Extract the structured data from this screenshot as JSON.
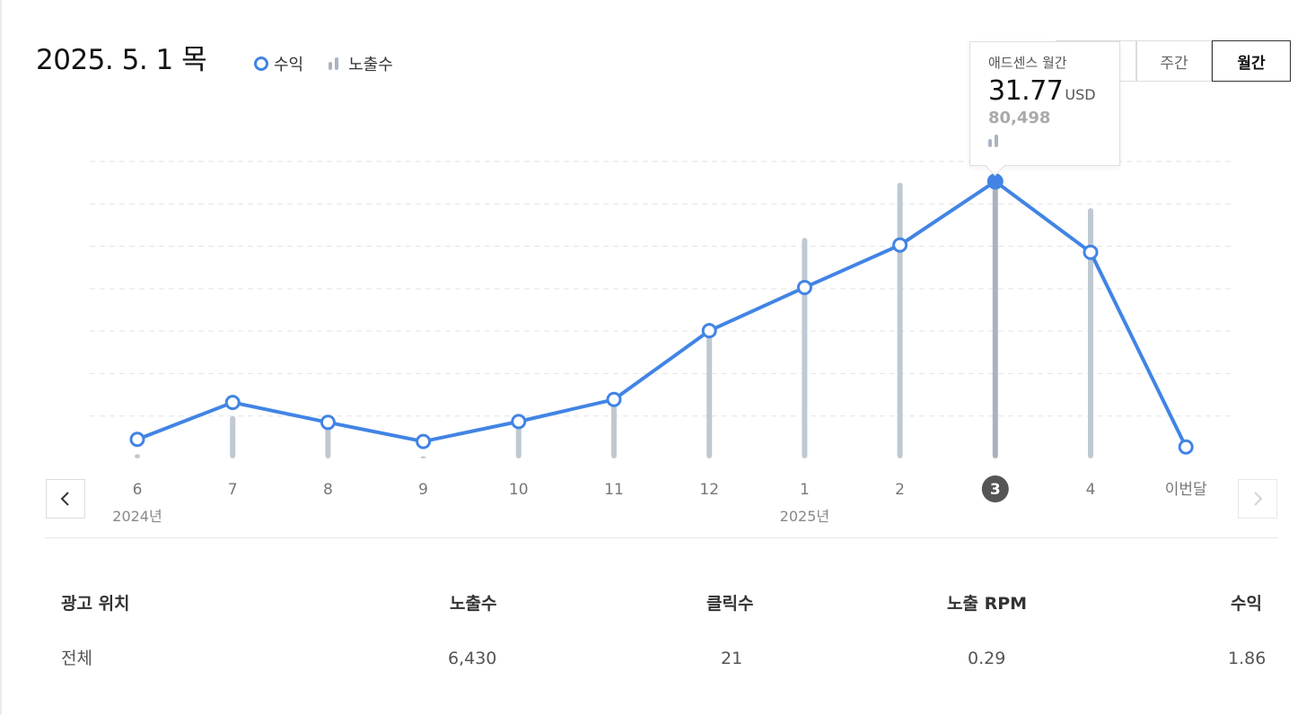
{
  "header": {
    "date": "2025. 5. 1 목",
    "legend": {
      "revenue": "수익",
      "impressions": "노출수"
    }
  },
  "period_tabs": [
    {
      "label": "",
      "active": false
    },
    {
      "label": "주간",
      "active": false
    },
    {
      "label": "월간",
      "active": true
    }
  ],
  "tooltip": {
    "title": "애드센스 월간",
    "value": "31.77",
    "unit": "USD",
    "impressions": "80,498"
  },
  "chart_data": {
    "type": "line",
    "categories": [
      "6",
      "7",
      "8",
      "9",
      "10",
      "11",
      "12",
      "1",
      "2",
      "3",
      "4",
      "이번달"
    ],
    "year_labels": [
      {
        "label": "2024년",
        "category": "6"
      },
      {
        "label": "2025년",
        "category": "1"
      }
    ],
    "selected_category": "3",
    "series": [
      {
        "name": "수익",
        "type": "line",
        "values": [
          0.45,
          1.32,
          0.85,
          0.4,
          0.87,
          1.39,
          3.01,
          4.03,
          5.03,
          6.53,
          4.86,
          0.27
        ]
      },
      {
        "name": "노출수",
        "type": "bar",
        "values": [
          0.1,
          1.0,
          0.8,
          0.05,
          0.9,
          1.5,
          3.2,
          5.2,
          6.5,
          7.2,
          5.9,
          0
        ]
      }
    ],
    "grid": true,
    "ylim": [
      0,
      7
    ],
    "colors": {
      "line": "#4184e4",
      "bar": "#bfc9d2",
      "bar_selected": "#a8b3be",
      "selected_badge": "#555555"
    }
  },
  "table": {
    "headers": [
      "광고 위치",
      "노출수",
      "클릭수",
      "노출 RPM",
      "수익"
    ],
    "rows": [
      [
        "전체",
        "6,430",
        "21",
        "0.29",
        "1.86"
      ]
    ]
  }
}
